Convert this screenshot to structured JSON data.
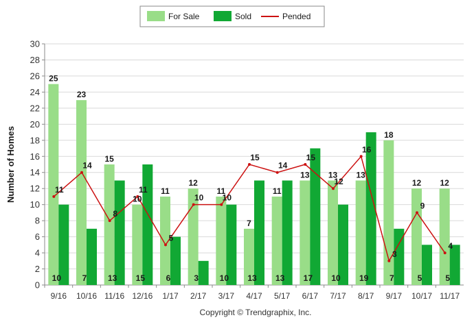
{
  "chart_data": {
    "type": "bar",
    "categories": [
      "9/16",
      "10/16",
      "11/16",
      "12/16",
      "1/17",
      "2/17",
      "3/17",
      "4/17",
      "5/17",
      "6/17",
      "7/17",
      "8/17",
      "9/17",
      "10/17",
      "11/17"
    ],
    "series": [
      {
        "name": "For Sale",
        "kind": "bar",
        "color": "#99dd88",
        "values": [
          25,
          23,
          15,
          10,
          11,
          12,
          11,
          7,
          11,
          13,
          13,
          13,
          18,
          12,
          12
        ]
      },
      {
        "name": "Sold",
        "kind": "bar",
        "color": "#11a834",
        "values": [
          10,
          7,
          13,
          15,
          6,
          3,
          10,
          13,
          13,
          17,
          10,
          19,
          7,
          5,
          5
        ]
      },
      {
        "name": "Pended",
        "kind": "line",
        "color": "#cc1111",
        "values": [
          11,
          14,
          8,
          11,
          5,
          10,
          10,
          15,
          14,
          15,
          12,
          16,
          3,
          9,
          4
        ]
      }
    ],
    "title": "",
    "xlabel": "",
    "ylabel": "Number of Homes",
    "ylim": [
      0,
      30
    ],
    "yticks": [
      0,
      2,
      4,
      6,
      8,
      10,
      12,
      14,
      16,
      18,
      20,
      22,
      24,
      26,
      28,
      30
    ],
    "grid": true,
    "legend": "top-center"
  },
  "footer": {
    "copyright": "Copyright © Trendgraphix, Inc."
  }
}
